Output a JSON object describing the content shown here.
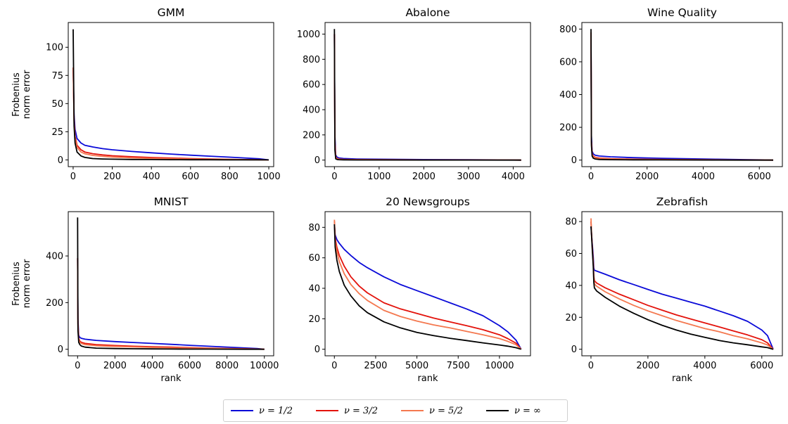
{
  "legend": [
    {
      "label": "ν = 1/2",
      "color": "#0a0ad8"
    },
    {
      "label": "ν = 3/2",
      "color": "#e3120b"
    },
    {
      "label": "ν = 5/2",
      "color": "#f4784f"
    },
    {
      "label": "ν = ∞",
      "color": "#000000"
    }
  ],
  "chart_data": [
    {
      "type": "line",
      "title": "GMM",
      "ylabel": "Frobenius\nnorm error",
      "xlabel": "",
      "xlim": [
        -25,
        1025
      ],
      "ylim": [
        -6,
        122
      ],
      "xticks": [
        0,
        200,
        400,
        600,
        800,
        1000
      ],
      "xtick_labels": [
        "0",
        "200",
        "400",
        "600",
        "800",
        "1000"
      ],
      "yticks": [
        0,
        25,
        50,
        75,
        100
      ],
      "ytick_labels": [
        "0",
        "25",
        "50",
        "75",
        "100"
      ],
      "series": [
        {
          "name": "ν = 1/2",
          "x": [
            0,
            5,
            10,
            20,
            40,
            60,
            100,
            150,
            200,
            300,
            400,
            500,
            600,
            700,
            800,
            900,
            950,
            1000
          ],
          "y": [
            82,
            40,
            27,
            19,
            15,
            13,
            11.5,
            10,
            9,
            7.5,
            6.3,
            5.2,
            4.2,
            3.3,
            2.4,
            1.5,
            1,
            0
          ]
        },
        {
          "name": "ν = 3/2",
          "x": [
            0,
            5,
            10,
            20,
            40,
            60,
            100,
            150,
            200,
            300,
            400,
            500,
            600,
            700,
            800,
            900,
            1000
          ],
          "y": [
            82,
            35,
            21,
            13,
            9,
            7,
            5.5,
            4.4,
            3.7,
            2.8,
            2.1,
            1.6,
            1.2,
            0.8,
            0.5,
            0.25,
            0
          ]
        },
        {
          "name": "ν = 5/2",
          "x": [
            0,
            5,
            10,
            20,
            40,
            60,
            100,
            150,
            200,
            300,
            400,
            500,
            600,
            700,
            800,
            900,
            1000
          ],
          "y": [
            82,
            33,
            19,
            11,
            7,
            5.4,
            4,
            3.1,
            2.5,
            1.8,
            1.3,
            1,
            0.7,
            0.5,
            0.3,
            0.15,
            0
          ]
        },
        {
          "name": "ν = ∞",
          "x": [
            0,
            5,
            10,
            20,
            40,
            60,
            100,
            150,
            200,
            300,
            400,
            500,
            600,
            700,
            800,
            900,
            1000
          ],
          "y": [
            116,
            30,
            15,
            7,
            3.5,
            2.2,
            1.2,
            0.8,
            0.6,
            0.4,
            0.3,
            0.2,
            0.15,
            0.1,
            0.06,
            0.03,
            0
          ]
        }
      ]
    },
    {
      "type": "line",
      "title": "Abalone",
      "ylabel": "",
      "xlabel": "",
      "xlim": [
        -210,
        4387
      ],
      "ylim": [
        -52,
        1092
      ],
      "xticks": [
        0,
        1000,
        2000,
        3000,
        4000
      ],
      "xtick_labels": [
        "0",
        "1000",
        "2000",
        "3000",
        "4000"
      ],
      "yticks": [
        0,
        200,
        400,
        600,
        800,
        1000
      ],
      "ytick_labels": [
        "0",
        "200",
        "400",
        "600",
        "800",
        "1000"
      ],
      "series": [
        {
          "name": "ν = 1/2",
          "x": [
            0,
            10,
            30,
            60,
            100,
            200,
            500,
            1000,
            2000,
            3000,
            4000,
            4177
          ],
          "y": [
            1000,
            200,
            40,
            22,
            17,
            13,
            9,
            7,
            4.5,
            2.5,
            0.8,
            0
          ]
        },
        {
          "name": "ν = 3/2",
          "x": [
            0,
            10,
            30,
            60,
            100,
            200,
            500,
            1000,
            2000,
            3000,
            4000,
            4177
          ],
          "y": [
            1000,
            150,
            25,
            13,
            9,
            6,
            4,
            3,
            1.8,
            1,
            0.3,
            0
          ]
        },
        {
          "name": "ν = 5/2",
          "x": [
            0,
            10,
            30,
            60,
            100,
            200,
            500,
            1000,
            2000,
            3000,
            4000,
            4177
          ],
          "y": [
            1000,
            130,
            20,
            10,
            7,
            4.5,
            3,
            2.2,
            1.3,
            0.7,
            0.2,
            0
          ]
        },
        {
          "name": "ν = ∞",
          "x": [
            0,
            10,
            30,
            60,
            100,
            200,
            500,
            1000,
            2000,
            3000,
            4000,
            4177
          ],
          "y": [
            1040,
            80,
            10,
            5,
            3,
            2,
            1.2,
            0.8,
            0.4,
            0.2,
            0.05,
            0
          ]
        }
      ]
    },
    {
      "type": "line",
      "title": "Wine Quality",
      "ylabel": "",
      "xlabel": "",
      "xlim": [
        -325,
        6822
      ],
      "ylim": [
        -40,
        840
      ],
      "xticks": [
        0,
        2000,
        4000,
        6000
      ],
      "xtick_labels": [
        "0",
        "2000",
        "4000",
        "6000"
      ],
      "yticks": [
        0,
        200,
        400,
        600,
        800
      ],
      "ytick_labels": [
        "0",
        "200",
        "400",
        "600",
        "800"
      ],
      "series": [
        {
          "name": "ν = 1/2",
          "x": [
            0,
            15,
            40,
            80,
            150,
            300,
            700,
            1500,
            2500,
            3500,
            4500,
            5500,
            6200,
            6497
          ],
          "y": [
            780,
            150,
            55,
            38,
            30,
            25,
            20,
            15,
            11,
            8,
            5.5,
            3,
            1,
            0
          ]
        },
        {
          "name": "ν = 3/2",
          "x": [
            0,
            15,
            40,
            80,
            150,
            300,
            700,
            1500,
            2500,
            3500,
            4500,
            5500,
            6497
          ],
          "y": [
            780,
            120,
            40,
            25,
            17,
            12,
            8,
            5.5,
            3.8,
            2.6,
            1.6,
            0.8,
            0
          ]
        },
        {
          "name": "ν = 5/2",
          "x": [
            0,
            15,
            40,
            80,
            150,
            300,
            700,
            1500,
            2500,
            3500,
            4500,
            5500,
            6497
          ],
          "y": [
            780,
            110,
            35,
            21,
            14,
            9,
            6,
            4,
            2.8,
            1.9,
            1.1,
            0.5,
            0
          ]
        },
        {
          "name": "ν = ∞",
          "x": [
            0,
            15,
            40,
            80,
            150,
            300,
            700,
            1500,
            2500,
            3500,
            4500,
            5500,
            6497
          ],
          "y": [
            800,
            90,
            25,
            12,
            7,
            4,
            2.5,
            1.5,
            1,
            0.6,
            0.3,
            0.1,
            0
          ]
        }
      ]
    },
    {
      "type": "line",
      "title": "MNIST",
      "ylabel": "Frobenius\nnorm error",
      "xlabel": "rank",
      "xlim": [
        -500,
        10500
      ],
      "ylim": [
        -28,
        590
      ],
      "xticks": [
        0,
        2000,
        4000,
        6000,
        8000,
        10000
      ],
      "xtick_labels": [
        "0",
        "2000",
        "4000",
        "6000",
        "8000",
        "10000"
      ],
      "yticks": [
        0,
        200,
        400
      ],
      "ytick_labels": [
        "0",
        "200",
        "400"
      ],
      "series": [
        {
          "name": "ν = 1/2",
          "x": [
            0,
            20,
            60,
            120,
            200,
            400,
            1000,
            2000,
            3000,
            4000,
            5000,
            6000,
            7000,
            8000,
            9000,
            9600,
            10000
          ],
          "y": [
            390,
            130,
            60,
            50,
            47,
            43,
            38,
            33,
            29,
            25,
            21,
            17,
            13,
            9.5,
            5.5,
            3,
            0
          ]
        },
        {
          "name": "ν = 3/2",
          "x": [
            0,
            20,
            60,
            120,
            200,
            400,
            1000,
            2000,
            3000,
            4000,
            5000,
            6000,
            7000,
            8000,
            9000,
            10000
          ],
          "y": [
            390,
            110,
            45,
            35,
            30,
            25,
            20,
            16,
            13,
            11,
            9,
            7,
            5,
            3.5,
            2,
            0
          ]
        },
        {
          "name": "ν = 5/2",
          "x": [
            0,
            20,
            60,
            120,
            200,
            400,
            1000,
            2000,
            3000,
            4000,
            5000,
            6000,
            7000,
            8000,
            9000,
            10000
          ],
          "y": [
            390,
            100,
            40,
            30,
            25,
            20,
            15,
            12,
            10,
            8,
            6.5,
            5,
            3.7,
            2.5,
            1.3,
            0
          ]
        },
        {
          "name": "ν = ∞",
          "x": [
            0,
            20,
            60,
            120,
            200,
            400,
            1000,
            2000,
            3000,
            4000,
            5000,
            6000,
            7000,
            8000,
            9000,
            10000
          ],
          "y": [
            565,
            80,
            30,
            20,
            14,
            9,
            5,
            3,
            2,
            1.5,
            1,
            0.7,
            0.5,
            0.3,
            0.15,
            0
          ]
        }
      ]
    },
    {
      "type": "line",
      "title": "20 Newsgroups",
      "ylabel": "",
      "xlabel": "rank",
      "xlim": [
        -565,
        11880
      ],
      "ylim": [
        -4.3,
        90.3
      ],
      "xticks": [
        0,
        2500,
        5000,
        7500,
        10000
      ],
      "xtick_labels": [
        "0",
        "2500",
        "5000",
        "7500",
        "10000"
      ],
      "yticks": [
        0,
        20,
        40,
        60,
        80
      ],
      "ytick_labels": [
        "0",
        "20",
        "40",
        "60",
        "80"
      ],
      "series": [
        {
          "name": "ν = 1/2",
          "x": [
            0,
            50,
            150,
            300,
            600,
            1000,
            1500,
            2000,
            3000,
            4000,
            5000,
            6000,
            7000,
            8000,
            9000,
            10000,
            10500,
            11000,
            11314
          ],
          "y": [
            82,
            75,
            72,
            69.5,
            65.5,
            61.5,
            57,
            53.5,
            47.5,
            42.5,
            38.5,
            34.5,
            30.5,
            26.5,
            22,
            15.5,
            11.5,
            6,
            0
          ]
        },
        {
          "name": "ν = 3/2",
          "x": [
            0,
            50,
            150,
            300,
            600,
            1000,
            1500,
            2000,
            3000,
            4000,
            5000,
            6000,
            7000,
            8000,
            9000,
            10000,
            10500,
            11000,
            11314
          ],
          "y": [
            84,
            73,
            67,
            61.5,
            54.5,
            47.5,
            41.5,
            37,
            30.5,
            26.5,
            23.5,
            20.5,
            18,
            15.5,
            12.8,
            9.5,
            7,
            4,
            0
          ]
        },
        {
          "name": "ν = 5/2",
          "x": [
            0,
            50,
            150,
            300,
            600,
            1000,
            1500,
            2000,
            3000,
            4000,
            5000,
            6000,
            7000,
            8000,
            9000,
            10000,
            10500,
            11000,
            11314
          ],
          "y": [
            85,
            71,
            64,
            57.5,
            49.5,
            42.5,
            36.5,
            32,
            25.5,
            21.5,
            18.5,
            16,
            14,
            11.7,
            9.5,
            7,
            5.2,
            3,
            0
          ]
        },
        {
          "name": "ν = ∞",
          "x": [
            0,
            50,
            150,
            300,
            600,
            1000,
            1500,
            2000,
            3000,
            4000,
            5000,
            6000,
            7000,
            8000,
            9000,
            10000,
            10500,
            11000,
            11314
          ],
          "y": [
            82,
            67,
            58.5,
            51,
            42,
            35,
            28.5,
            24,
            18,
            14,
            11,
            9,
            7.2,
            5.7,
            4.2,
            2.8,
            2,
            1,
            0
          ]
        }
      ]
    },
    {
      "type": "line",
      "title": "Zebrafish",
      "ylabel": "",
      "xlabel": "rank",
      "xlim": [
        -320,
        6722
      ],
      "ylim": [
        -4.1,
        86.2
      ],
      "xticks": [
        0,
        2000,
        4000,
        6000
      ],
      "xtick_labels": [
        "0",
        "2000",
        "4000",
        "6000"
      ],
      "yticks": [
        0,
        20,
        40,
        60,
        80
      ],
      "ytick_labels": [
        "0",
        "20",
        "40",
        "60",
        "80"
      ],
      "series": [
        {
          "name": "ν = 1/2",
          "x": [
            0,
            20,
            50,
            80,
            100,
            120,
            200,
            500,
            1000,
            1500,
            2000,
            2500,
            3000,
            3500,
            4000,
            4500,
            5000,
            5500,
            6000,
            6200,
            6400
          ],
          "y": [
            77,
            72,
            65,
            58,
            51,
            49.5,
            49,
            47,
            43.5,
            40.5,
            37.5,
            34.5,
            32,
            29.5,
            27,
            24,
            21,
            17.5,
            12,
            8.5,
            0
          ]
        },
        {
          "name": "ν = 3/2",
          "x": [
            0,
            20,
            50,
            80,
            100,
            120,
            200,
            500,
            1000,
            1500,
            2000,
            2500,
            3000,
            3500,
            4000,
            4500,
            5000,
            5500,
            6000,
            6200,
            6400
          ],
          "y": [
            80,
            72,
            63,
            55,
            46,
            43,
            41.5,
            38.5,
            34.5,
            31,
            27.5,
            24.5,
            21.5,
            19,
            16.5,
            14,
            11.5,
            9,
            6,
            4,
            0
          ]
        },
        {
          "name": "ν = 5/2",
          "x": [
            0,
            20,
            50,
            80,
            100,
            120,
            200,
            500,
            1000,
            1500,
            2000,
            2500,
            3000,
            3500,
            4000,
            4500,
            5000,
            5500,
            6000,
            6200,
            6400
          ],
          "y": [
            82,
            72,
            62,
            54,
            44,
            41,
            39.5,
            36,
            31.5,
            27.5,
            24,
            21,
            18,
            15.5,
            13,
            11,
            8.5,
            6.5,
            4,
            2.7,
            0
          ]
        },
        {
          "name": "ν = ∞",
          "x": [
            0,
            20,
            50,
            80,
            100,
            120,
            200,
            500,
            1000,
            1500,
            2000,
            2500,
            3000,
            3500,
            4000,
            4500,
            5000,
            5500,
            6000,
            6200,
            6400
          ],
          "y": [
            77,
            71,
            61,
            52,
            42,
            38.5,
            36.5,
            32.5,
            27,
            22.5,
            18.5,
            15,
            12,
            9.5,
            7.5,
            5.5,
            4,
            2.8,
            1.5,
            1,
            0
          ]
        }
      ]
    }
  ]
}
